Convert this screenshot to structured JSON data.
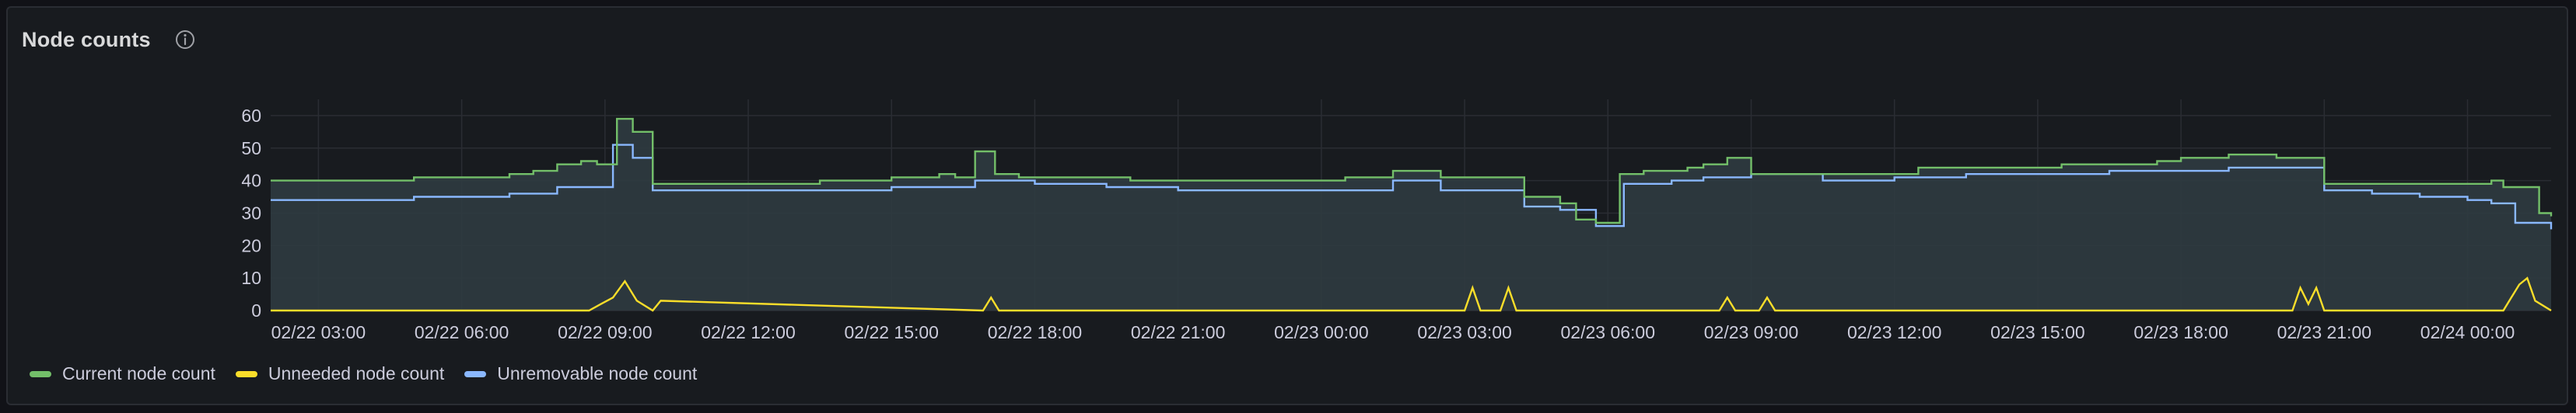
{
  "panel": {
    "title": "Node counts",
    "info_icon": "info-circle-icon"
  },
  "colors": {
    "current": "#73bf69",
    "unneeded": "#fade2a",
    "unremovable": "#8ab8ff",
    "grid": "#2a2d33",
    "axis_text": "#ccccdc",
    "area_fill": "#2f3b40"
  },
  "chart_data": {
    "type": "line",
    "title": "",
    "xlabel": "",
    "ylabel": "",
    "ylim": [
      0,
      65
    ],
    "yticks": [
      0,
      10,
      20,
      30,
      40,
      50,
      60
    ],
    "x_ticks": [
      "02/22 03:00",
      "02/22 06:00",
      "02/22 09:00",
      "02/22 12:00",
      "02/22 15:00",
      "02/22 18:00",
      "02/22 21:00",
      "02/23 00:00",
      "02/23 03:00",
      "02/23 06:00",
      "02/23 09:00",
      "02/23 12:00",
      "02/23 15:00",
      "02/23 18:00",
      "02/23 21:00",
      "02/24 00:00"
    ],
    "x_range": [
      "02/22 02:00",
      "02/24 01:45"
    ],
    "grid": true,
    "legend_position": "bottom-left",
    "series": [
      {
        "name": "Current node count",
        "x": [
          "02/22 02:00",
          "02/22 04:30",
          "02/22 05:00",
          "02/22 06:00",
          "02/22 07:00",
          "02/22 07:30",
          "02/22 08:00",
          "02/22 08:30",
          "02/22 08:50",
          "02/22 09:15",
          "02/22 09:35",
          "02/22 10:00",
          "02/22 11:30",
          "02/22 12:00",
          "02/22 13:30",
          "02/22 15:00",
          "02/22 16:00",
          "02/22 16:20",
          "02/22 16:45",
          "02/22 17:10",
          "02/22 17:40",
          "02/22 18:30",
          "02/22 20:00",
          "02/22 21:00",
          "02/22 22:00",
          "02/22 23:30",
          "02/23 00:30",
          "02/23 01:30",
          "02/23 02:30",
          "02/23 03:30",
          "02/23 04:15",
          "02/23 05:00",
          "02/23 05:20",
          "02/23 05:45",
          "02/23 06:15",
          "02/23 06:45",
          "02/23 07:15",
          "02/23 07:40",
          "02/23 08:00",
          "02/23 08:30",
          "02/23 09:00",
          "02/23 09:30",
          "02/23 10:30",
          "02/23 12:00",
          "02/23 12:30",
          "02/23 14:00",
          "02/23 15:30",
          "02/23 16:30",
          "02/23 17:30",
          "02/23 18:00",
          "02/23 19:00",
          "02/23 20:00",
          "02/23 20:30",
          "02/23 21:00",
          "02/23 22:00",
          "02/23 23:00",
          "02/24 00:00",
          "02/24 00:30",
          "02/24 00:45",
          "02/24 01:30",
          "02/24 01:45"
        ],
        "values": [
          40,
          40,
          41,
          41,
          42,
          43,
          45,
          46,
          45,
          59,
          55,
          39,
          39,
          39,
          40,
          41,
          42,
          41,
          49,
          42,
          41,
          41,
          40,
          40,
          40,
          40,
          41,
          43,
          41,
          41,
          35,
          33,
          28,
          27,
          42,
          43,
          43,
          44,
          45,
          47,
          42,
          42,
          42,
          42,
          44,
          44,
          45,
          45,
          46,
          47,
          48,
          47,
          47,
          39,
          39,
          39,
          39,
          40,
          38,
          30,
          29
        ]
      },
      {
        "name": "Unneeded node count",
        "x": [
          "02/22 02:00",
          "02/22 08:40",
          "02/22 08:55",
          "02/22 09:10",
          "02/22 09:25",
          "02/22 09:40",
          "02/22 10:00",
          "02/22 10:10",
          "02/22 16:55",
          "02/22 17:05",
          "02/22 17:15",
          "02/23 03:00",
          "02/23 03:10",
          "02/23 03:20",
          "02/23 03:45",
          "02/23 03:55",
          "02/23 04:05",
          "02/23 08:20",
          "02/23 08:30",
          "02/23 08:40",
          "02/23 09:10",
          "02/23 09:20",
          "02/23 09:30",
          "02/23 20:20",
          "02/23 20:30",
          "02/23 20:40",
          "02/23 20:50",
          "02/23 21:00",
          "02/24 00:45",
          "02/24 00:55",
          "02/24 01:05",
          "02/24 01:15",
          "02/24 01:25",
          "02/24 01:45"
        ],
        "values": [
          0,
          0,
          2,
          4,
          9,
          3,
          0,
          3,
          0,
          4,
          0,
          0,
          7,
          0,
          0,
          7,
          0,
          0,
          4,
          0,
          0,
          4,
          0,
          0,
          7,
          2,
          7,
          0,
          0,
          4,
          8,
          10,
          3,
          0
        ]
      },
      {
        "name": "Unremovable node count",
        "x": [
          "02/22 02:00",
          "02/22 04:30",
          "02/22 05:00",
          "02/22 06:00",
          "02/22 07:00",
          "02/22 08:00",
          "02/22 09:10",
          "02/22 09:35",
          "02/22 10:00",
          "02/22 12:00",
          "02/22 13:30",
          "02/22 15:00",
          "02/22 16:00",
          "02/22 16:45",
          "02/22 18:00",
          "02/22 19:30",
          "02/22 21:00",
          "02/23 00:30",
          "02/23 01:30",
          "02/23 02:30",
          "02/23 03:30",
          "02/23 04:15",
          "02/23 05:00",
          "02/23 05:45",
          "02/23 06:20",
          "02/23 07:20",
          "02/23 08:00",
          "02/23 09:00",
          "02/23 10:30",
          "02/23 12:00",
          "02/23 13:30",
          "02/23 15:00",
          "02/23 16:30",
          "02/23 17:30",
          "02/23 19:00",
          "02/23 20:30",
          "02/23 21:00",
          "02/23 22:00",
          "02/23 23:00",
          "02/24 00:00",
          "02/24 00:30",
          "02/24 01:00",
          "02/24 01:45"
        ],
        "values": [
          34,
          34,
          35,
          35,
          36,
          38,
          51,
          47,
          37,
          37,
          37,
          38,
          38,
          40,
          39,
          38,
          37,
          37,
          40,
          37,
          37,
          32,
          31,
          26,
          39,
          40,
          41,
          42,
          40,
          41,
          42,
          42,
          43,
          43,
          44,
          44,
          37,
          36,
          35,
          34,
          33,
          27,
          25
        ]
      }
    ]
  },
  "legend": [
    {
      "label": "Current node count",
      "color": "#73bf69"
    },
    {
      "label": "Unneeded node count",
      "color": "#fade2a"
    },
    {
      "label": "Unremovable node count",
      "color": "#8ab8ff"
    }
  ]
}
